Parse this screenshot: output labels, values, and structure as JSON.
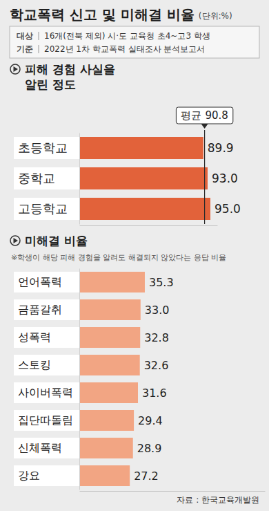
{
  "header": {
    "title": "학교폭력 신고 및 미해결 비율",
    "unit": "(단위:%)",
    "info": [
      {
        "label": "대상",
        "text": "16개(전북 제외) 시·도 교육청 초4~고3 학생"
      },
      {
        "label": "기준",
        "text": "2022년 1차 학교폭력 실태조사 분석보고서"
      }
    ]
  },
  "chart_data": [
    {
      "type": "bar",
      "orientation": "horizontal",
      "title": "피해 경험 사실을 알린 정도",
      "categories": [
        "초등학교",
        "중학교",
        "고등학교"
      ],
      "values": [
        89.9,
        93.0,
        95.0
      ],
      "value_labels": [
        "89.9",
        "93.0",
        "95.0"
      ],
      "color": "#e2623a",
      "xlim": [
        0,
        100
      ],
      "data_labels": true,
      "tick_labels": "y",
      "reference_line": {
        "label": "평균",
        "value": 90.8
      }
    },
    {
      "type": "bar",
      "orientation": "horizontal",
      "title": "미해결 비율",
      "note": "※학생이 해당 피해 경험을 알려도 해결되지 않았다는 응답 비율",
      "categories": [
        "언어폭력",
        "금품갈취",
        "성폭력",
        "스토킹",
        "사이버폭력",
        "집단따돌림",
        "신체폭력",
        "강요"
      ],
      "values": [
        35.3,
        33.0,
        32.8,
        32.6,
        31.6,
        29.4,
        28.9,
        27.2
      ],
      "value_labels": [
        "35.3",
        "33.0",
        "32.8",
        "32.6",
        "31.6",
        "29.4",
        "28.9",
        "27.2"
      ],
      "color": "#f2a583",
      "xlim": [
        0,
        100
      ],
      "data_labels": true,
      "tick_labels": "y"
    }
  ],
  "source": "자료 : 한국교육개발원"
}
